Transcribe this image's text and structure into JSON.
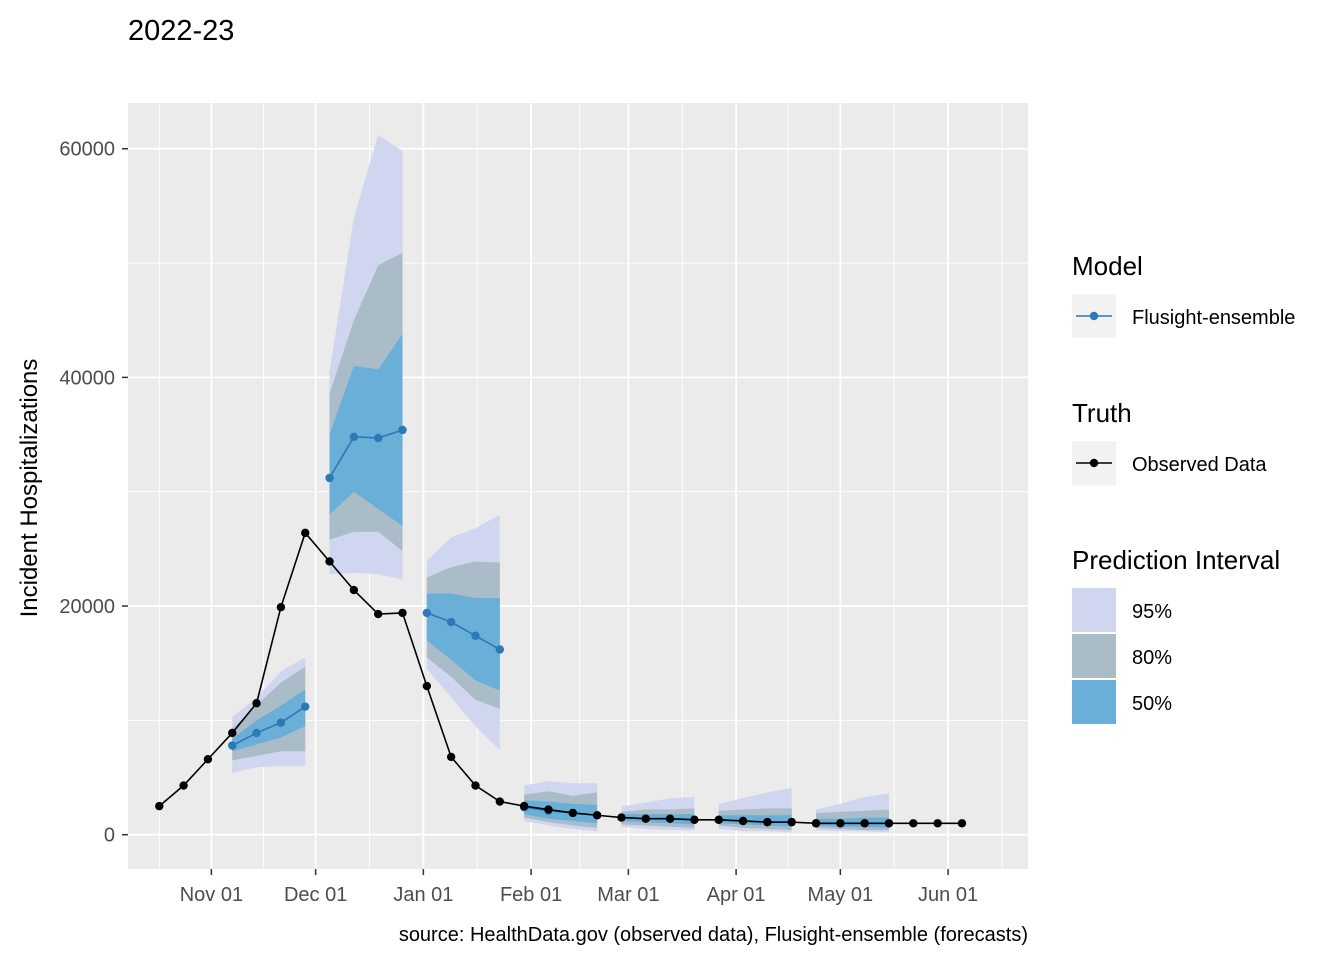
{
  "chart_data": {
    "type": "line",
    "title": "2022-23",
    "ylabel": "Incident Hospitalizations",
    "xlabel": "",
    "caption": "source: HealthData.gov (observed data), Flusight-ensemble (forecasts)",
    "x_type": "date",
    "xlim": [
      "2022-10-08",
      "2023-06-24"
    ],
    "ylim": [
      -3000,
      64000
    ],
    "x_ticks": [
      {
        "date": "2022-11-01",
        "label": "Nov 01"
      },
      {
        "date": "2022-12-01",
        "label": "Dec 01"
      },
      {
        "date": "2023-01-01",
        "label": "Jan 01"
      },
      {
        "date": "2023-02-01",
        "label": "Feb 01"
      },
      {
        "date": "2023-03-01",
        "label": "Mar 01"
      },
      {
        "date": "2023-04-01",
        "label": "Apr 01"
      },
      {
        "date": "2023-05-01",
        "label": "May 01"
      },
      {
        "date": "2023-06-01",
        "label": "Jun 01"
      }
    ],
    "y_ticks": [
      0,
      20000,
      40000,
      60000
    ],
    "grid": true,
    "legend_position": "right",
    "observed": {
      "name": "Observed Data",
      "color": "#000000",
      "points": [
        {
          "date": "2022-10-17",
          "value": 2500
        },
        {
          "date": "2022-10-24",
          "value": 4300
        },
        {
          "date": "2022-10-31",
          "value": 6600
        },
        {
          "date": "2022-11-07",
          "value": 8900
        },
        {
          "date": "2022-11-14",
          "value": 11500
        },
        {
          "date": "2022-11-21",
          "value": 19900
        },
        {
          "date": "2022-11-28",
          "value": 26400
        },
        {
          "date": "2022-12-05",
          "value": 23900
        },
        {
          "date": "2022-12-12",
          "value": 21400
        },
        {
          "date": "2022-12-19",
          "value": 19300
        },
        {
          "date": "2022-12-26",
          "value": 19400
        },
        {
          "date": "2023-01-02",
          "value": 13000
        },
        {
          "date": "2023-01-09",
          "value": 6800
        },
        {
          "date": "2023-01-16",
          "value": 4300
        },
        {
          "date": "2023-01-23",
          "value": 2900
        },
        {
          "date": "2023-01-30",
          "value": 2500
        },
        {
          "date": "2023-02-06",
          "value": 2200
        },
        {
          "date": "2023-02-13",
          "value": 1900
        },
        {
          "date": "2023-02-20",
          "value": 1700
        },
        {
          "date": "2023-02-27",
          "value": 1500
        },
        {
          "date": "2023-03-06",
          "value": 1400
        },
        {
          "date": "2023-03-13",
          "value": 1400
        },
        {
          "date": "2023-03-20",
          "value": 1300
        },
        {
          "date": "2023-03-27",
          "value": 1300
        },
        {
          "date": "2023-04-03",
          "value": 1200
        },
        {
          "date": "2023-04-10",
          "value": 1100
        },
        {
          "date": "2023-04-17",
          "value": 1100
        },
        {
          "date": "2023-04-24",
          "value": 1000
        },
        {
          "date": "2023-05-01",
          "value": 1000
        },
        {
          "date": "2023-05-08",
          "value": 1000
        },
        {
          "date": "2023-05-15",
          "value": 1000
        },
        {
          "date": "2023-05-22",
          "value": 1000
        },
        {
          "date": "2023-05-29",
          "value": 1000
        },
        {
          "date": "2023-06-05",
          "value": 1000
        }
      ]
    },
    "forecasts": {
      "name": "Flusight-ensemble",
      "color": "#2b79b5",
      "segments": [
        [
          {
            "date": "2022-11-07",
            "median": 7800,
            "q50": [
              7300,
              8400
            ],
            "q80": [
              6500,
              9300
            ],
            "q95": [
              5400,
              10300
            ]
          },
          {
            "date": "2022-11-14",
            "median": 8900,
            "q50": [
              7900,
              10000
            ],
            "q80": [
              6900,
              11300
            ],
            "q95": [
              5900,
              12000
            ]
          },
          {
            "date": "2022-11-21",
            "median": 9800,
            "q50": [
              8500,
              11300
            ],
            "q80": [
              7300,
              13300
            ],
            "q95": [
              6000,
              14300
            ]
          },
          {
            "date": "2022-11-28",
            "median": 11200,
            "q50": [
              9500,
              12700
            ],
            "q80": [
              7300,
              14700
            ],
            "q95": [
              6000,
              15500
            ]
          }
        ],
        [
          {
            "date": "2022-12-05",
            "median": 31200,
            "q50": [
              28000,
              35000
            ],
            "q80": [
              25800,
              38600
            ],
            "q95": [
              22800,
              40500
            ]
          },
          {
            "date": "2022-12-12",
            "median": 34800,
            "q50": [
              30000,
              41000
            ],
            "q80": [
              26500,
              45000
            ],
            "q95": [
              22900,
              54000
            ]
          },
          {
            "date": "2022-12-19",
            "median": 34700,
            "q50": [
              28500,
              40700
            ],
            "q80": [
              26500,
              49800
            ],
            "q95": [
              22800,
              61200
            ]
          },
          {
            "date": "2022-12-26",
            "median": 35400,
            "q50": [
              27000,
              43800
            ],
            "q80": [
              24800,
              50900
            ],
            "q95": [
              22300,
              59800
            ]
          }
        ],
        [
          {
            "date": "2023-01-02",
            "median": 19400,
            "q50": [
              17000,
              21100
            ],
            "q80": [
              15500,
              22500
            ],
            "q95": [
              14500,
              24000
            ]
          },
          {
            "date": "2023-01-09",
            "median": 18600,
            "q50": [
              15300,
              21100
            ],
            "q80": [
              13800,
              23400
            ],
            "q95": [
              12000,
              26000
            ]
          },
          {
            "date": "2023-01-16",
            "median": 17400,
            "q50": [
              13500,
              20700
            ],
            "q80": [
              11800,
              23900
            ],
            "q95": [
              9500,
              26800
            ]
          },
          {
            "date": "2023-01-23",
            "median": 16200,
            "q50": [
              12600,
              20700
            ],
            "q80": [
              11000,
              23800
            ],
            "q95": [
              7400,
              28000
            ]
          }
        ],
        [
          {
            "date": "2023-01-30",
            "median": 2400,
            "q50": [
              1800,
              3000
            ],
            "q80": [
              1500,
              3500
            ],
            "q95": [
              1200,
              4300
            ]
          },
          {
            "date": "2023-02-06",
            "median": 2100,
            "q50": [
              1400,
              2900
            ],
            "q80": [
              1100,
              3800
            ],
            "q95": [
              800,
              4700
            ]
          },
          {
            "date": "2023-02-13",
            "median": 1900,
            "q50": [
              1200,
              2700
            ],
            "q80": [
              800,
              3400
            ],
            "q95": [
              500,
              4500
            ]
          },
          {
            "date": "2023-02-20",
            "median": 1700,
            "q50": [
              1000,
              2600
            ],
            "q80": [
              600,
              3700
            ],
            "q95": [
              300,
              4500
            ]
          }
        ],
        [
          {
            "date": "2023-02-27",
            "median": 1500,
            "q50": [
              1200,
              1800
            ],
            "q80": [
              900,
              2000
            ],
            "q95": [
              700,
              2500
            ]
          },
          {
            "date": "2023-03-06",
            "median": 1400,
            "q50": [
              1100,
              1800
            ],
            "q80": [
              800,
              2200
            ],
            "q95": [
              500,
              2800
            ]
          },
          {
            "date": "2023-03-13",
            "median": 1400,
            "q50": [
              1000,
              1800
            ],
            "q80": [
              700,
              2200
            ],
            "q95": [
              400,
              3200
            ]
          },
          {
            "date": "2023-03-20",
            "median": 1300,
            "q50": [
              900,
              1800
            ],
            "q80": [
              600,
              2300
            ],
            "q95": [
              400,
              3300
            ]
          }
        ],
        [
          {
            "date": "2023-03-27",
            "median": 1300,
            "q50": [
              1000,
              1700
            ],
            "q80": [
              800,
              2100
            ],
            "q95": [
              500,
              2700
            ]
          },
          {
            "date": "2023-04-03",
            "median": 1200,
            "q50": [
              900,
              1700
            ],
            "q80": [
              600,
              2200
            ],
            "q95": [
              300,
              3200
            ]
          },
          {
            "date": "2023-04-10",
            "median": 1100,
            "q50": [
              800,
              1700
            ],
            "q80": [
              500,
              2300
            ],
            "q95": [
              300,
              3700
            ]
          },
          {
            "date": "2023-04-17",
            "median": 1100,
            "q50": [
              700,
              1700
            ],
            "q80": [
              400,
              2300
            ],
            "q95": [
              200,
              4100
            ]
          }
        ],
        [
          {
            "date": "2023-04-24",
            "median": 1000,
            "q50": [
              800,
              1400
            ],
            "q80": [
              600,
              1900
            ],
            "q95": [
              400,
              2200
            ]
          },
          {
            "date": "2023-05-01",
            "median": 1000,
            "q50": [
              700,
              1400
            ],
            "q80": [
              500,
              2000
            ],
            "q95": [
              300,
              2700
            ]
          },
          {
            "date": "2023-05-08",
            "median": 1000,
            "q50": [
              700,
              1500
            ],
            "q80": [
              400,
              2100
            ],
            "q95": [
              300,
              3300
            ]
          },
          {
            "date": "2023-05-15",
            "median": 1000,
            "q50": [
              600,
              1500
            ],
            "q80": [
              400,
              2200
            ],
            "q95": [
              200,
              3600
            ]
          }
        ]
      ]
    },
    "legends": [
      {
        "title": "Model",
        "items": [
          {
            "label": "Flusight-ensemble",
            "color": "#2b79b5",
            "kind": "line-point"
          }
        ]
      },
      {
        "title": "Truth",
        "items": [
          {
            "label": "Observed Data",
            "color": "#000000",
            "kind": "line-point"
          }
        ]
      },
      {
        "title": "Prediction Interval",
        "items": [
          {
            "label": "95%",
            "color": "#d0d6f0",
            "kind": "fill"
          },
          {
            "label": "80%",
            "color": "#aabcc7",
            "kind": "fill"
          },
          {
            "label": "50%",
            "color": "#69afd8",
            "kind": "fill"
          }
        ]
      }
    ],
    "colors": {
      "panel_background": "#ebebeb",
      "grid": "#ffffff",
      "band_95": "#d0d6f0",
      "band_80": "#aabcc7",
      "band_50": "#69afd8",
      "legend_key_background": "#f2f2f2"
    }
  }
}
